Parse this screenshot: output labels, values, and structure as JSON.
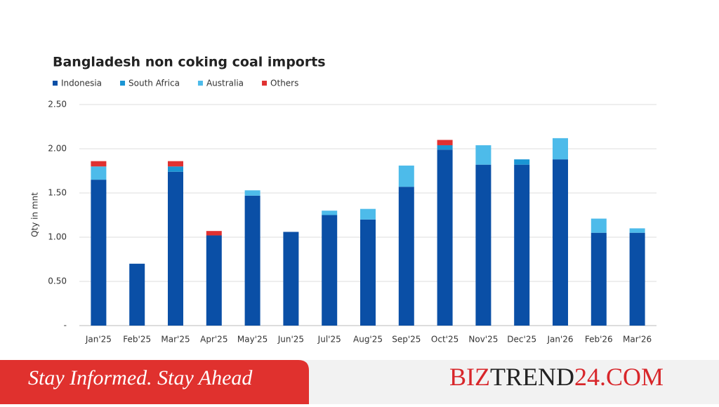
{
  "chart_data": {
    "type": "bar",
    "stacked": true,
    "title": "Bangladesh non coking coal imports",
    "y_label": "Qty in mnt",
    "categories": [
      "Jan'25",
      "Feb'25",
      "Mar'25",
      "Apr'25",
      "May'25",
      "Jun'25",
      "Jul'25",
      "Aug'25",
      "Sep'25",
      "Oct'25",
      "Nov'25",
      "Dec'25",
      "Jan'26",
      "Feb'26",
      "Mar'26"
    ],
    "series": [
      {
        "name": "Indonesia",
        "color": "#0a4fa6",
        "values": [
          1.65,
          0.7,
          1.74,
          1.02,
          1.47,
          1.06,
          1.25,
          1.2,
          1.57,
          1.99,
          1.82,
          1.82,
          1.88,
          1.05,
          1.05
        ]
      },
      {
        "name": "South Africa",
        "color": "#1a95d4",
        "values": [
          0,
          0,
          0.06,
          0,
          0,
          0,
          0,
          0,
          0,
          0.05,
          0,
          0.06,
          0,
          0,
          0
        ]
      },
      {
        "name": "Australia",
        "color": "#4dbbea",
        "values": [
          0.15,
          0,
          0,
          0,
          0.06,
          0,
          0.05,
          0.12,
          0.24,
          0,
          0.22,
          0,
          0.24,
          0.16,
          0.05
        ]
      },
      {
        "name": "Others",
        "color": "#e03131",
        "values": [
          0.06,
          0,
          0.06,
          0.05,
          0,
          0,
          0,
          0,
          0,
          0.06,
          0,
          0,
          0,
          0,
          0
        ]
      }
    ],
    "ylim": [
      0,
      2.5
    ],
    "yticks": [
      {
        "value": 0,
        "label": "-"
      },
      {
        "value": 0.5,
        "label": "0.50"
      },
      {
        "value": 1,
        "label": "1.00"
      },
      {
        "value": 1.5,
        "label": "1.50"
      },
      {
        "value": 2,
        "label": "2.00"
      },
      {
        "value": 2.5,
        "label": "2.50"
      }
    ],
    "grid": true
  },
  "banner": {
    "tagline": "Stay Informed. Stay Ahead",
    "brand": [
      "BIZ",
      "TREND",
      "24.COM"
    ]
  }
}
